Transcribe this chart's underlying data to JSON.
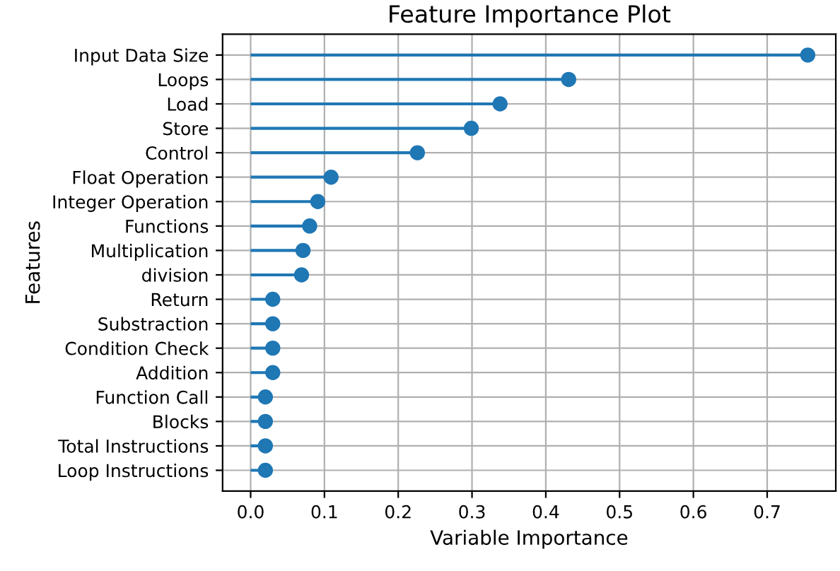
{
  "chart_data": {
    "type": "lollipop",
    "orientation": "horizontal",
    "title": "Feature Importance Plot",
    "xlabel": "Variable Importance",
    "ylabel": "Features",
    "categories": [
      "Input Data Size",
      "Loops",
      "Load",
      "Store",
      "Control",
      "Float Operation",
      "Integer Operation",
      "Functions",
      "Multiplication",
      "division",
      "Return",
      "Substraction",
      "Condition Check",
      "Addition",
      "Function Call",
      "Blocks",
      "Total Instructions",
      "Loop Instructions"
    ],
    "values": [
      0.755,
      0.431,
      0.338,
      0.299,
      0.226,
      0.109,
      0.091,
      0.08,
      0.071,
      0.069,
      0.03,
      0.03,
      0.03,
      0.03,
      0.02,
      0.02,
      0.02,
      0.02
    ],
    "color": "#1f77b4",
    "marker": "circle",
    "grid": true,
    "xlim": [
      -0.038,
      0.793
    ],
    "xticks": [
      {
        "value": 0,
        "label": "0.0"
      },
      0.1,
      0.2,
      0.3,
      0.4,
      0.5,
      0.6,
      0.7
    ]
  }
}
